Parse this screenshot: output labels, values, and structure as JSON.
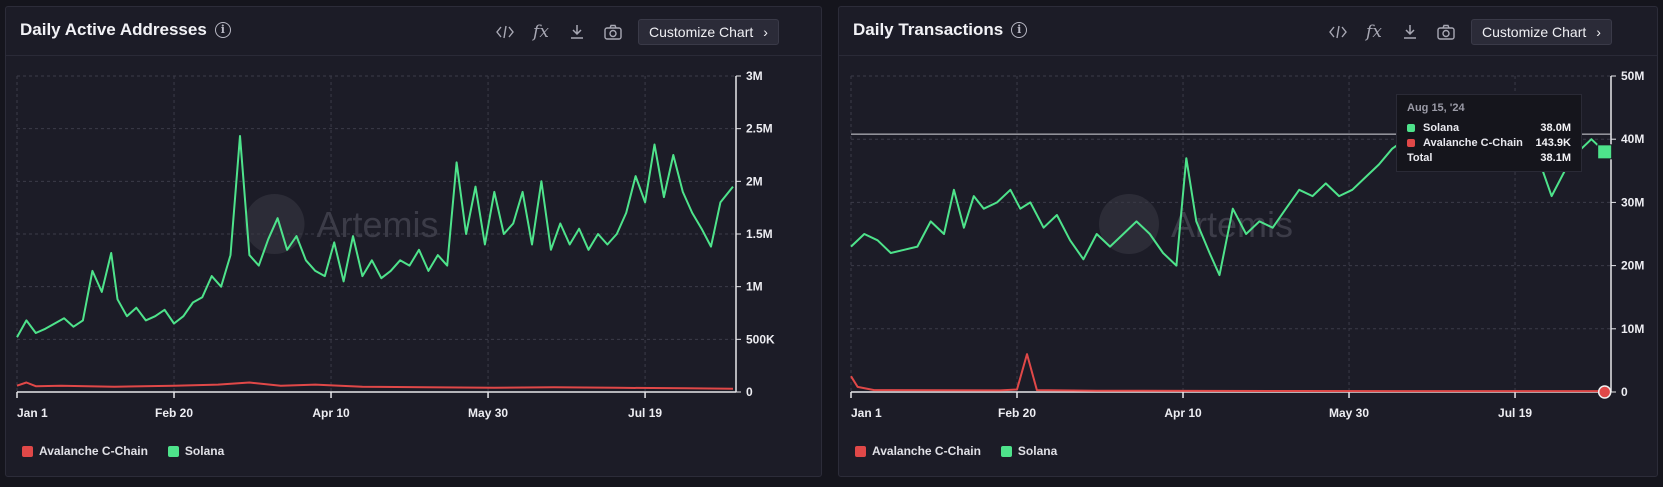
{
  "colors": {
    "solana": "#4ee38b",
    "avalanche": "#e04848",
    "grid": "#3b3b48",
    "axis": "#e6e6ea"
  },
  "toolbar": {
    "customize_label": "Customize Chart",
    "code_icon": "code-icon",
    "fx_label": "fx",
    "download_icon": "download-icon",
    "camera_icon": "camera-icon",
    "chevron": "›",
    "info_glyph": "i"
  },
  "watermark": "Artemis",
  "panels": [
    {
      "title": "Daily Active Addresses",
      "legend": [
        "Avalanche C-Chain",
        "Solana"
      ]
    },
    {
      "title": "Daily Transactions",
      "legend": [
        "Avalanche C-Chain",
        "Solana"
      ]
    }
  ],
  "tooltip": {
    "date": "Aug 15, '24",
    "rows": [
      {
        "name": "Solana",
        "value": "38.0M",
        "color": "#4ee38b"
      },
      {
        "name": "Avalanche C-Chain",
        "value": "143.9K",
        "color": "#e04848"
      },
      {
        "name": "Total",
        "value": "38.1M"
      }
    ]
  },
  "chart_data": [
    {
      "type": "line",
      "title": "Daily Active Addresses",
      "x_ticks": [
        "Jan 1",
        "Feb 20",
        "Apr 10",
        "May 30",
        "Jul 19"
      ],
      "y_ticks": [
        "0",
        "500K",
        "1M",
        "1.5M",
        "2M",
        "2.5M",
        "3M"
      ],
      "ylim": [
        0,
        3000000
      ],
      "x_range": [
        "2024-01-01",
        "2024-08-16"
      ],
      "series": [
        {
          "name": "Solana",
          "color": "#4ee38b",
          "points": [
            [
              "2024-01-01",
              520000
            ],
            [
              "2024-01-04",
              680000
            ],
            [
              "2024-01-07",
              560000
            ],
            [
              "2024-01-10",
              600000
            ],
            [
              "2024-01-13",
              650000
            ],
            [
              "2024-01-16",
              700000
            ],
            [
              "2024-01-19",
              620000
            ],
            [
              "2024-01-22",
              680000
            ],
            [
              "2024-01-25",
              1150000
            ],
            [
              "2024-01-28",
              950000
            ],
            [
              "2024-01-31",
              1320000
            ],
            [
              "2024-02-02",
              880000
            ],
            [
              "2024-02-05",
              720000
            ],
            [
              "2024-02-08",
              800000
            ],
            [
              "2024-02-11",
              680000
            ],
            [
              "2024-02-14",
              720000
            ],
            [
              "2024-02-17",
              780000
            ],
            [
              "2024-02-20",
              650000
            ],
            [
              "2024-02-23",
              720000
            ],
            [
              "2024-02-26",
              850000
            ],
            [
              "2024-02-29",
              900000
            ],
            [
              "2024-03-03",
              1100000
            ],
            [
              "2024-03-06",
              1000000
            ],
            [
              "2024-03-09",
              1300000
            ],
            [
              "2024-03-12",
              2430000
            ],
            [
              "2024-03-15",
              1300000
            ],
            [
              "2024-03-18",
              1200000
            ],
            [
              "2024-03-21",
              1450000
            ],
            [
              "2024-03-24",
              1650000
            ],
            [
              "2024-03-27",
              1350000
            ],
            [
              "2024-03-30",
              1480000
            ],
            [
              "2024-04-02",
              1250000
            ],
            [
              "2024-04-05",
              1150000
            ],
            [
              "2024-04-08",
              1100000
            ],
            [
              "2024-04-11",
              1420000
            ],
            [
              "2024-04-14",
              1050000
            ],
            [
              "2024-04-17",
              1480000
            ],
            [
              "2024-04-20",
              1100000
            ],
            [
              "2024-04-23",
              1250000
            ],
            [
              "2024-04-26",
              1080000
            ],
            [
              "2024-04-29",
              1150000
            ],
            [
              "2024-05-02",
              1250000
            ],
            [
              "2024-05-05",
              1200000
            ],
            [
              "2024-05-08",
              1350000
            ],
            [
              "2024-05-11",
              1150000
            ],
            [
              "2024-05-14",
              1300000
            ],
            [
              "2024-05-17",
              1200000
            ],
            [
              "2024-05-20",
              2180000
            ],
            [
              "2024-05-23",
              1500000
            ],
            [
              "2024-05-26",
              1950000
            ],
            [
              "2024-05-29",
              1400000
            ],
            [
              "2024-06-01",
              1900000
            ],
            [
              "2024-06-04",
              1500000
            ],
            [
              "2024-06-07",
              1600000
            ],
            [
              "2024-06-10",
              1900000
            ],
            [
              "2024-06-13",
              1400000
            ],
            [
              "2024-06-16",
              2000000
            ],
            [
              "2024-06-19",
              1350000
            ],
            [
              "2024-06-22",
              1600000
            ],
            [
              "2024-06-25",
              1400000
            ],
            [
              "2024-06-28",
              1550000
            ],
            [
              "2024-07-01",
              1350000
            ],
            [
              "2024-07-04",
              1500000
            ],
            [
              "2024-07-07",
              1400000
            ],
            [
              "2024-07-10",
              1500000
            ],
            [
              "2024-07-13",
              1700000
            ],
            [
              "2024-07-16",
              2050000
            ],
            [
              "2024-07-19",
              1800000
            ],
            [
              "2024-07-22",
              2350000
            ],
            [
              "2024-07-25",
              1850000
            ],
            [
              "2024-07-28",
              2250000
            ],
            [
              "2024-07-31",
              1900000
            ],
            [
              "2024-08-03",
              1700000
            ],
            [
              "2024-08-06",
              1550000
            ],
            [
              "2024-08-09",
              1380000
            ],
            [
              "2024-08-12",
              1800000
            ],
            [
              "2024-08-16",
              1950000
            ]
          ]
        },
        {
          "name": "Avalanche C-Chain",
          "color": "#e04848",
          "points": [
            [
              "2024-01-01",
              60000
            ],
            [
              "2024-01-04",
              90000
            ],
            [
              "2024-01-07",
              55000
            ],
            [
              "2024-01-15",
              60000
            ],
            [
              "2024-02-01",
              50000
            ],
            [
              "2024-02-20",
              60000
            ],
            [
              "2024-03-05",
              70000
            ],
            [
              "2024-03-15",
              90000
            ],
            [
              "2024-03-25",
              60000
            ],
            [
              "2024-04-05",
              70000
            ],
            [
              "2024-04-20",
              50000
            ],
            [
              "2024-05-10",
              45000
            ],
            [
              "2024-06-01",
              40000
            ],
            [
              "2024-06-20",
              45000
            ],
            [
              "2024-07-10",
              40000
            ],
            [
              "2024-08-01",
              35000
            ],
            [
              "2024-08-16",
              30000
            ]
          ]
        }
      ]
    },
    {
      "type": "line",
      "title": "Daily Transactions",
      "x_ticks": [
        "Jan 1",
        "Feb 20",
        "Apr 10",
        "May 30",
        "Jul 19"
      ],
      "y_ticks": [
        "0",
        "10M",
        "20M",
        "30M",
        "40M",
        "50M"
      ],
      "ylim": [
        0,
        50000000
      ],
      "x_range": [
        "2024-01-01",
        "2024-08-16"
      ],
      "series": [
        {
          "name": "Solana",
          "color": "#4ee38b",
          "points": [
            [
              "2024-01-01",
              23000000
            ],
            [
              "2024-01-05",
              25000000
            ],
            [
              "2024-01-09",
              24000000
            ],
            [
              "2024-01-13",
              22000000
            ],
            [
              "2024-01-17",
              22500000
            ],
            [
              "2024-01-21",
              23000000
            ],
            [
              "2024-01-25",
              27000000
            ],
            [
              "2024-01-29",
              25000000
            ],
            [
              "2024-02-01",
              32000000
            ],
            [
              "2024-02-04",
              26000000
            ],
            [
              "2024-02-07",
              31000000
            ],
            [
              "2024-02-10",
              29000000
            ],
            [
              "2024-02-14",
              30000000
            ],
            [
              "2024-02-18",
              32000000
            ],
            [
              "2024-02-21",
              29000000
            ],
            [
              "2024-02-24",
              30000000
            ],
            [
              "2024-02-28",
              26000000
            ],
            [
              "2024-03-03",
              28000000
            ],
            [
              "2024-03-07",
              24000000
            ],
            [
              "2024-03-11",
              21000000
            ],
            [
              "2024-03-15",
              25000000
            ],
            [
              "2024-03-19",
              23000000
            ],
            [
              "2024-03-23",
              25000000
            ],
            [
              "2024-03-27",
              27000000
            ],
            [
              "2024-03-31",
              25000000
            ],
            [
              "2024-04-04",
              22000000
            ],
            [
              "2024-04-08",
              20000000
            ],
            [
              "2024-04-11",
              37000000
            ],
            [
              "2024-04-14",
              27000000
            ],
            [
              "2024-04-18",
              22000000
            ],
            [
              "2024-04-21",
              18500000
            ],
            [
              "2024-04-25",
              29000000
            ],
            [
              "2024-04-29",
              25000000
            ],
            [
              "2024-05-03",
              27000000
            ],
            [
              "2024-05-07",
              26000000
            ],
            [
              "2024-05-11",
              29000000
            ],
            [
              "2024-05-15",
              32000000
            ],
            [
              "2024-05-19",
              31000000
            ],
            [
              "2024-05-23",
              33000000
            ],
            [
              "2024-05-27",
              31000000
            ],
            [
              "2024-05-31",
              32000000
            ],
            [
              "2024-06-04",
              34000000
            ],
            [
              "2024-06-08",
              36000000
            ],
            [
              "2024-06-12",
              38500000
            ],
            [
              "2024-06-16",
              40000000
            ],
            [
              "2024-06-20",
              42000000
            ],
            [
              "2024-06-24",
              44000000
            ],
            [
              "2024-06-28",
              41000000
            ],
            [
              "2024-07-02",
              44000000
            ],
            [
              "2024-07-06",
              42000000
            ],
            [
              "2024-07-10",
              43000000
            ],
            [
              "2024-07-14",
              41000000
            ],
            [
              "2024-07-18",
              42000000
            ],
            [
              "2024-07-22",
              39000000
            ],
            [
              "2024-07-26",
              37000000
            ],
            [
              "2024-07-30",
              31000000
            ],
            [
              "2024-08-03",
              35000000
            ],
            [
              "2024-08-07",
              38000000
            ],
            [
              "2024-08-11",
              40000000
            ],
            [
              "2024-08-15",
              38000000
            ]
          ]
        },
        {
          "name": "Avalanche C-Chain",
          "color": "#e04848",
          "points": [
            [
              "2024-01-01",
              2500000
            ],
            [
              "2024-01-03",
              800000
            ],
            [
              "2024-01-08",
              300000
            ],
            [
              "2024-02-15",
              250000
            ],
            [
              "2024-02-20",
              400000
            ],
            [
              "2024-02-23",
              6000000
            ],
            [
              "2024-02-26",
              300000
            ],
            [
              "2024-03-15",
              200000
            ],
            [
              "2024-04-15",
              180000
            ],
            [
              "2024-05-15",
              160000
            ],
            [
              "2024-06-15",
              150000
            ],
            [
              "2024-07-15",
              145000
            ],
            [
              "2024-08-15",
              143900
            ]
          ]
        }
      ]
    }
  ]
}
